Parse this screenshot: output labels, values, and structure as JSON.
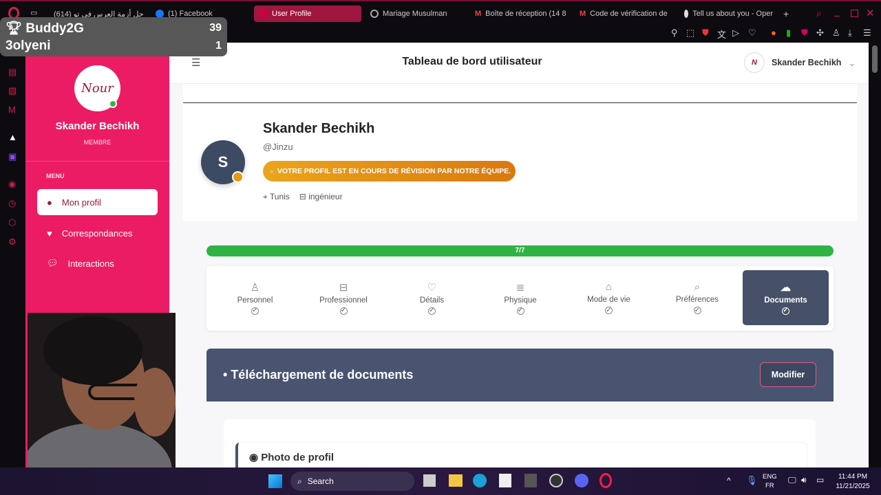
{
  "browser": {
    "tabs": [
      {
        "label": "(614) حل أزمة العرس فى تو"
      },
      {
        "label": "(1) Facebook"
      },
      {
        "label": "User Profile",
        "active": true
      },
      {
        "label": "Mariage Musulman"
      },
      {
        "label": "Boîte de réception (14 8"
      },
      {
        "label": "Code de vérification de"
      },
      {
        "label": "Tell us about you - Oper"
      }
    ],
    "new_tab": "+"
  },
  "overlay": {
    "rows": [
      {
        "name": "Buddy2G",
        "score": "39"
      },
      {
        "name": "3olyeni",
        "score": "1"
      }
    ]
  },
  "sidebar": {
    "logo": "Nour",
    "user_name": "Skander Bechikh",
    "role": "MEMBRE",
    "menu_title": "MENU",
    "items": [
      {
        "label": "Mon profil",
        "icon": "user-icon",
        "active": true
      },
      {
        "label": "Correspondances",
        "icon": "heart-icon"
      },
      {
        "label": "Interactions",
        "icon": "chat-icon"
      }
    ]
  },
  "header": {
    "title": "Tableau de bord utilisateur",
    "user": "Skander Bechikh"
  },
  "profile": {
    "initial": "S",
    "name": "Skander Bechikh",
    "handle": "@Jinzu",
    "status_badge": "VOTRE PROFIL EST EN COURS DE RÉVISION PAR NOTRE ÉQUIPE.",
    "location": "Tunis",
    "profession": "ingénieur"
  },
  "progress": {
    "label": "7/7",
    "value": 1.0,
    "color": "#2fb344"
  },
  "steps": [
    {
      "label": "Personnel",
      "icon": "user-icon"
    },
    {
      "label": "Professionnel",
      "icon": "briefcase-icon"
    },
    {
      "label": "Détails",
      "icon": "heart-icon"
    },
    {
      "label": "Physique",
      "icon": "ruler-icon"
    },
    {
      "label": "Mode de vie",
      "icon": "home-icon"
    },
    {
      "label": "Préférences",
      "icon": "search-icon"
    },
    {
      "label": "Documents",
      "icon": "cloud-upload-icon",
      "active": true
    }
  ],
  "section": {
    "title": "Téléchargement de documents",
    "edit_button": "Modifier",
    "subsection": "Photo de profil"
  },
  "taskbar": {
    "search": "Search",
    "lang1": "ENG",
    "lang2": "FR",
    "time": "11:44 PM",
    "date": "11/21/2025"
  },
  "colors": {
    "sidebar": "#ec1c64",
    "accent": "#465069",
    "badge": "#e39b15"
  }
}
